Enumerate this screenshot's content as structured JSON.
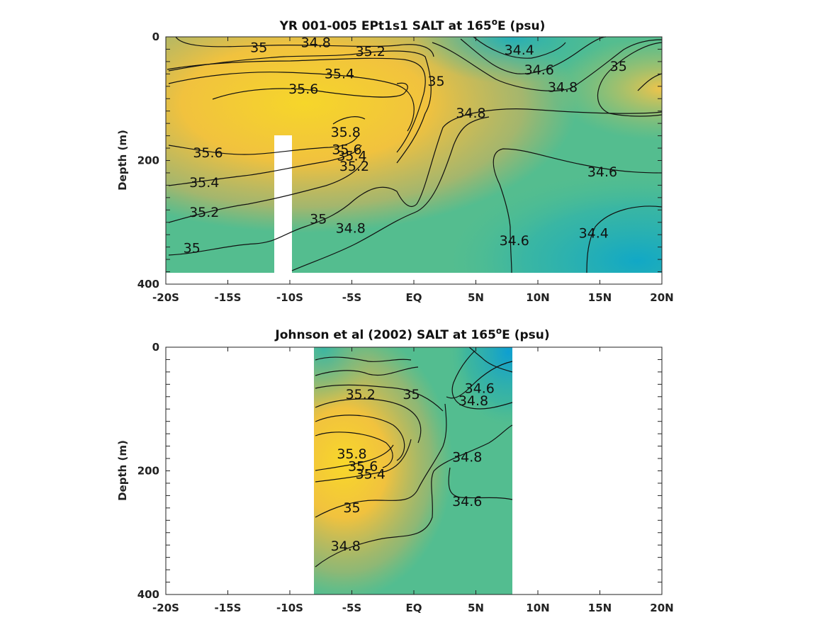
{
  "chart_data": [
    {
      "type": "heatmap",
      "title_main": "YR 001-005 EPt1s1 SALT at 165",
      "title_sup": "o",
      "title_tail": "E (psu)",
      "ylabel": "Depth (m)",
      "xlim": [
        -20,
        20
      ],
      "ylim": [
        0,
        400
      ],
      "y_reversed": true,
      "x_ticks": [
        -20,
        -15,
        -10,
        -5,
        0,
        5,
        10,
        15,
        20
      ],
      "x_tick_labels": [
        "-20S",
        "-15S",
        "-10S",
        "-5S",
        "EQ",
        "5N",
        "10N",
        "15N",
        "20N"
      ],
      "y_ticks": [
        0,
        200,
        400
      ],
      "y_tick_labels": [
        "0",
        "200",
        "400"
      ],
      "contour_labels": [
        {
          "text": "35",
          "x": -12.5,
          "y": 18
        },
        {
          "text": "34.8",
          "x": -7.9,
          "y": 10
        },
        {
          "text": "35.2",
          "x": -3.5,
          "y": 24
        },
        {
          "text": "35.4",
          "x": -6.0,
          "y": 60
        },
        {
          "text": "35.6",
          "x": -8.9,
          "y": 85
        },
        {
          "text": "35",
          "x": 1.8,
          "y": 72
        },
        {
          "text": "34.8",
          "x": 4.6,
          "y": 124
        },
        {
          "text": "34.4",
          "x": 8.5,
          "y": 22
        },
        {
          "text": "34.6",
          "x": 10.1,
          "y": 54
        },
        {
          "text": "34.8",
          "x": 12.0,
          "y": 82
        },
        {
          "text": "35",
          "x": 16.5,
          "y": 48
        },
        {
          "text": "35.8",
          "x": -5.5,
          "y": 155
        },
        {
          "text": "35.6",
          "x": -5.4,
          "y": 183
        },
        {
          "text": "35.4",
          "x": -5.0,
          "y": 193
        },
        {
          "text": "35.2",
          "x": -4.8,
          "y": 210
        },
        {
          "text": "35.6",
          "x": -16.6,
          "y": 188
        },
        {
          "text": "35.4",
          "x": -16.9,
          "y": 236
        },
        {
          "text": "35.2",
          "x": -16.9,
          "y": 284
        },
        {
          "text": "35",
          "x": -17.9,
          "y": 342
        },
        {
          "text": "35",
          "x": -7.7,
          "y": 295
        },
        {
          "text": "34.8",
          "x": -5.1,
          "y": 310
        },
        {
          "text": "34.6",
          "x": 8.1,
          "y": 330
        },
        {
          "text": "34.4",
          "x": 14.5,
          "y": 318
        },
        {
          "text": "34.6",
          "x": 15.2,
          "y": 219
        }
      ]
    },
    {
      "type": "heatmap",
      "title_main": "Johnson et al (2002) SALT at 165",
      "title_sup": "o",
      "title_tail": "E (psu)",
      "ylabel": "Depth (m)",
      "xlim": [
        -20,
        20
      ],
      "ylim": [
        0,
        400
      ],
      "y_reversed": true,
      "data_extent_x": [
        -8,
        8
      ],
      "x_ticks": [
        -20,
        -15,
        -10,
        -5,
        0,
        5,
        10,
        15,
        20
      ],
      "x_tick_labels": [
        "-20S",
        "-15S",
        "-10S",
        "-5S",
        "EQ",
        "5N",
        "10N",
        "15N",
        "20N"
      ],
      "y_ticks": [
        0,
        200,
        400
      ],
      "y_tick_labels": [
        "0",
        "200",
        "400"
      ],
      "contour_labels": [
        {
          "text": "35.2",
          "x": -4.3,
          "y": 77
        },
        {
          "text": "35",
          "x": -0.2,
          "y": 77
        },
        {
          "text": "34.6",
          "x": 5.3,
          "y": 67
        },
        {
          "text": "34.8",
          "x": 4.8,
          "y": 87
        },
        {
          "text": "35.8",
          "x": -5.0,
          "y": 173
        },
        {
          "text": "35.6",
          "x": -4.1,
          "y": 193
        },
        {
          "text": "35.4",
          "x": -3.5,
          "y": 206
        },
        {
          "text": "34.8",
          "x": 4.3,
          "y": 178
        },
        {
          "text": "34.6",
          "x": 4.3,
          "y": 250
        },
        {
          "text": "35",
          "x": -5.0,
          "y": 260
        },
        {
          "text": "34.8",
          "x": -5.5,
          "y": 322
        }
      ]
    }
  ]
}
